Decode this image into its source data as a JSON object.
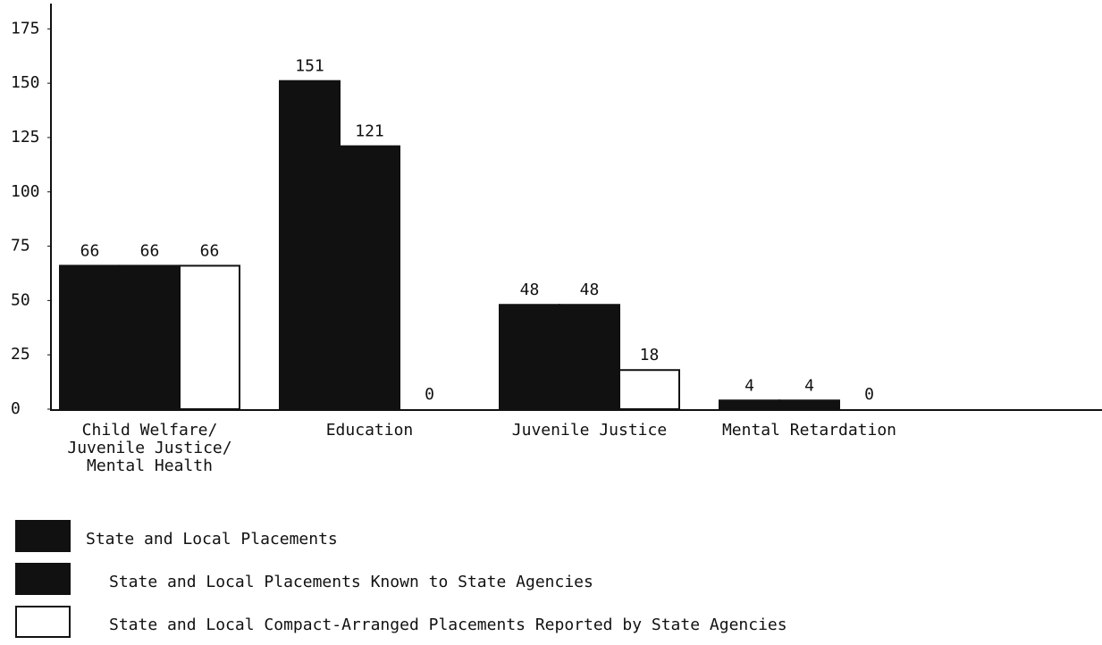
{
  "chart_data": {
    "type": "bar",
    "categories": [
      "Child Welfare/\nJuvenile Justice/\nMental Health",
      "Education",
      "Juvenile Justice",
      "Mental Retardation"
    ],
    "series": [
      {
        "name": "State and Local Placements",
        "color": "#111111",
        "values": [
          66,
          151,
          48,
          4
        ]
      },
      {
        "name": "State and Local Placements Known to State Agencies",
        "color": "#111111",
        "values": [
          66,
          121,
          48,
          4
        ]
      },
      {
        "name": "State and Local Compact-Arranged Placements Reported by State Agencies",
        "color": "#ffffff",
        "values": [
          66,
          0,
          18,
          0
        ]
      }
    ],
    "ylim": [
      0,
      185
    ],
    "yticks": [
      0,
      25,
      50,
      75,
      100,
      125,
      150,
      175
    ],
    "grid": false,
    "legend": "bottom"
  }
}
